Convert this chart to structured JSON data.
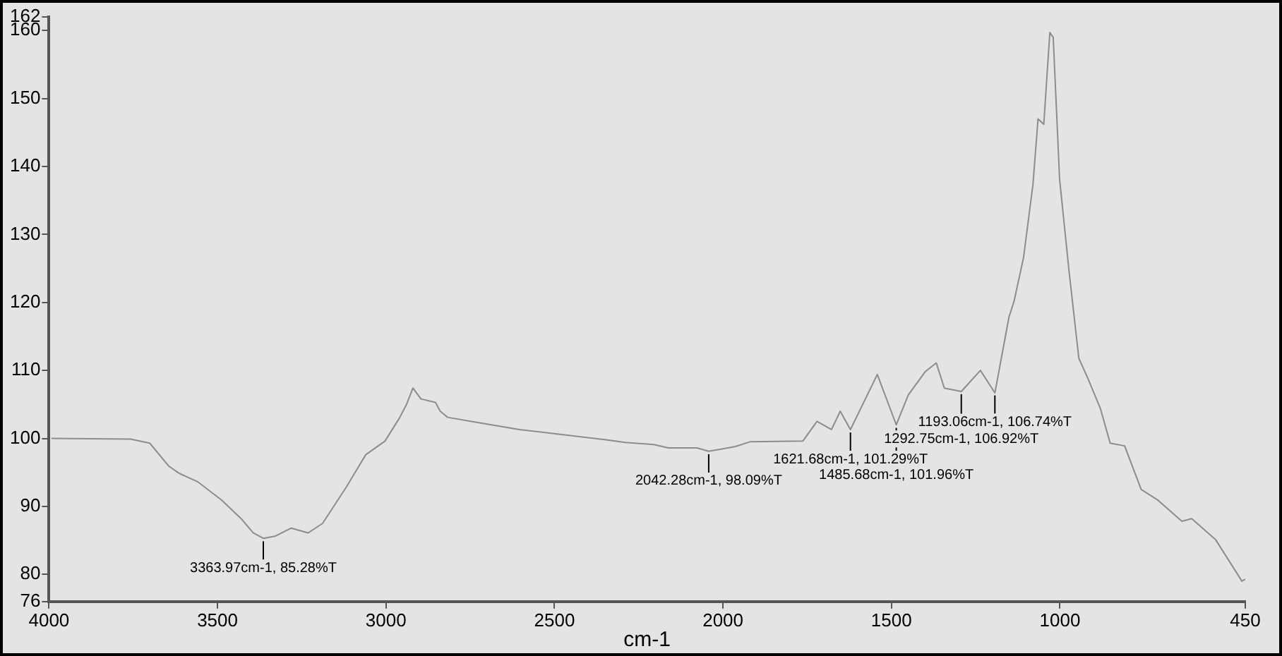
{
  "chart_data": {
    "type": "line",
    "xlabel": "cm-1",
    "xlim": [
      4000,
      450
    ],
    "xticks": [
      4000,
      3500,
      3000,
      2500,
      2000,
      1500,
      1000,
      450
    ],
    "ylim": [
      76,
      162
    ],
    "yticks": [
      76,
      80,
      90,
      100,
      110,
      120,
      130,
      140,
      150,
      160,
      162
    ],
    "marker": "none",
    "legend": false,
    "x": [
      3993,
      3758,
      3701,
      3644,
      3615,
      3558,
      3487,
      3430,
      3394,
      3363.97,
      3330,
      3281,
      3231,
      3188,
      3117,
      3060,
      3003,
      2960,
      2939,
      2920,
      2896,
      2853,
      2839,
      2817,
      2746,
      2604,
      2347,
      2290,
      2205,
      2162,
      2077,
      2042.28,
      1963,
      1920,
      1763,
      1721,
      1678,
      1652,
      1621.68,
      1542,
      1485.68,
      1450,
      1400,
      1367,
      1343,
      1292.75,
      1236,
      1193.06,
      1151,
      1136,
      1108,
      1080,
      1065,
      1048,
      1030,
      1020,
      1001,
      973,
      944,
      916,
      880,
      851,
      808,
      759,
      709,
      638,
      609,
      538,
      460,
      450
    ],
    "series": [
      {
        "color": "#8c8c8c",
        "values": [
          100.0,
          99.9,
          99.3,
          95.9,
          94.9,
          93.6,
          90.9,
          88.2,
          86.1,
          85.3,
          85.6,
          86.8,
          86.1,
          87.5,
          92.9,
          97.6,
          99.6,
          103.0,
          105.0,
          107.4,
          105.8,
          105.3,
          104.0,
          103.1,
          102.5,
          101.3,
          99.8,
          99.4,
          99.1,
          98.6,
          98.6,
          98.1,
          98.8,
          99.5,
          99.6,
          102.5,
          101.3,
          104.0,
          101.3,
          109.4,
          102.0,
          106.4,
          109.8,
          111.1,
          107.4,
          106.9,
          110.0,
          106.7,
          117.9,
          120.2,
          126.6,
          137.4,
          147.0,
          146.2,
          159.7,
          159.0,
          138.1,
          124.6,
          111.8,
          108.7,
          104.4,
          99.3,
          98.9,
          92.5,
          90.9,
          87.8,
          88.2,
          85.1,
          79.0,
          79.3
        ]
      }
    ],
    "annotations": [
      {
        "text": "3363.97cm-1, 85.28%T",
        "x": 3363.97,
        "y": 85.28
      },
      {
        "text": "2042.28cm-1, 98.09%T",
        "x": 2042.28,
        "y": 98.09
      },
      {
        "text": "1621.68cm-1, 101.29%T",
        "x": 1621.68,
        "y": 101.29
      },
      {
        "text": "1485.68cm-1, 101.96%T",
        "x": 1485.68,
        "y": 101.96
      },
      {
        "text": "1292.75cm-1, 106.92%T",
        "x": 1292.75,
        "y": 106.92
      },
      {
        "text": "1193.06cm-1, 106.74%T",
        "x": 1193.06,
        "y": 106.74
      }
    ]
  }
}
